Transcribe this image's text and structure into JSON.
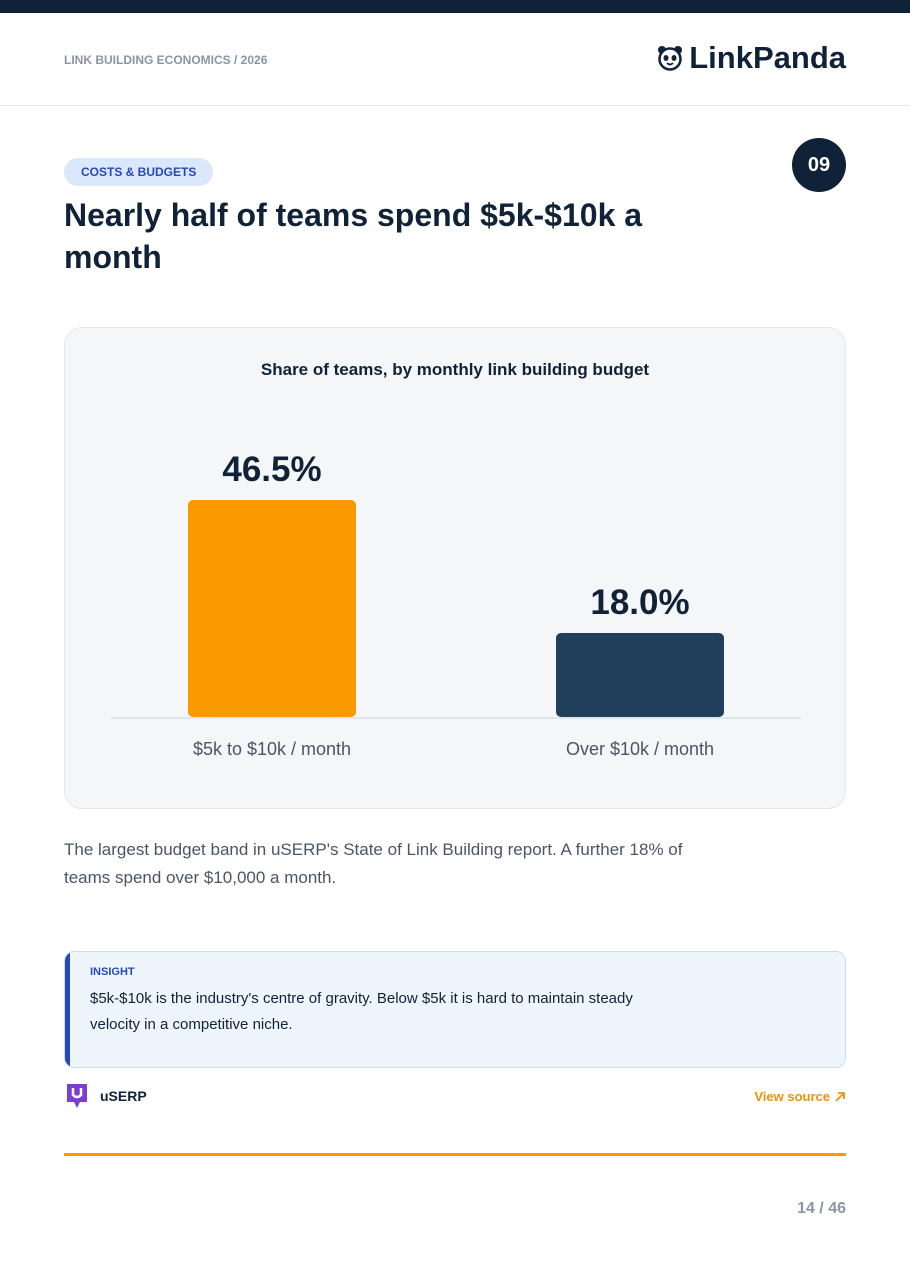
{
  "header": {
    "kicker": "LINK BUILDING ECONOMICS / 2026",
    "brand": "LinkPanda"
  },
  "section": {
    "tag": "COSTS & BUDGETS",
    "number": "09",
    "title": "Nearly half of teams spend $5k-$10k a month"
  },
  "chart": {
    "type": "bar",
    "title": "Share of teams, by monthly link building budget",
    "categories": [
      "$5k to $10k / month",
      "Over $10k / month"
    ],
    "values": [
      46.5,
      18.0
    ],
    "value_labels": [
      "46.5%",
      "18.0%"
    ],
    "colors": [
      "#fa9a00",
      "#213f5a"
    ]
  },
  "description": "The largest budget band in uSERP's State of Link Building report. A further 18% of teams spend over $10,000 a month.",
  "insight": {
    "label": "INSIGHT",
    "text": "$5k-$10k is the industry's centre of gravity. Below $5k it is hard to maintain steady velocity in a competitive niche."
  },
  "source": {
    "name": "uSERP",
    "link": "View source"
  },
  "footer": {
    "page": "14 / 46"
  }
}
